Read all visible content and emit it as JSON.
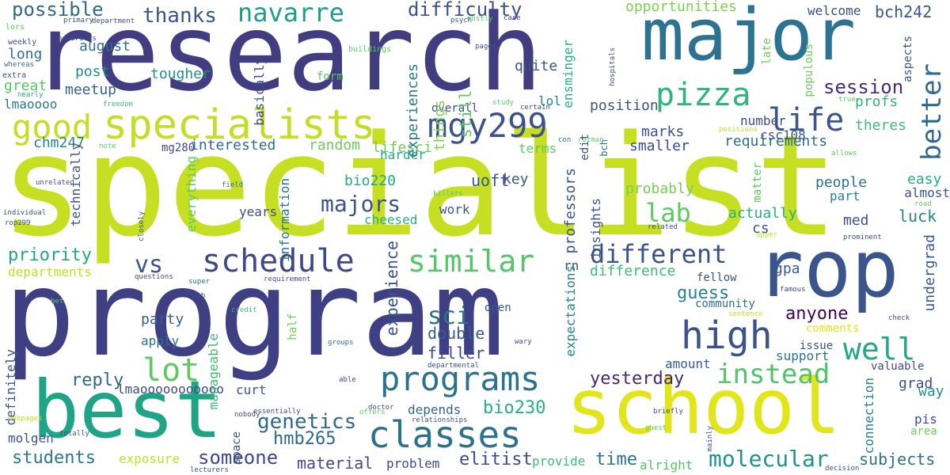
{
  "words": [
    {
      "text": "specialist",
      "color": "#c7df23"
    },
    {
      "text": "program",
      "color": "#3f3f84"
    },
    {
      "text": "research",
      "color": "#423d80"
    },
    {
      "text": "major",
      "color": "#2b7390"
    },
    {
      "text": "rop",
      "color": "#3a548c"
    },
    {
      "text": "best",
      "color": "#20a486"
    },
    {
      "text": "school",
      "color": "#e1e51a"
    },
    {
      "text": "specialists",
      "color": "#c0df25"
    },
    {
      "text": "good",
      "color": "#c1df24"
    },
    {
      "text": "mgy299",
      "color": "#3a538b"
    },
    {
      "text": "classes",
      "color": "#2c718e"
    },
    {
      "text": "programs",
      "color": "#2b728e"
    },
    {
      "text": "high",
      "color": "#3b528b"
    },
    {
      "text": "schedule",
      "color": "#3e4989"
    },
    {
      "text": "similar",
      "color": "#55c667"
    },
    {
      "text": "lot",
      "color": "#5ec962"
    },
    {
      "text": "well",
      "color": "#22a884"
    },
    {
      "text": "instead",
      "color": "#4fc46a"
    },
    {
      "text": "pizza",
      "color": "#2fb47c"
    },
    {
      "text": "life",
      "color": "#3a548c"
    },
    {
      "text": "navarre",
      "color": "#1f9e89"
    },
    {
      "text": "different",
      "color": "#3a538b"
    },
    {
      "text": "vs",
      "color": "#3a548c"
    },
    {
      "text": "lab",
      "color": "#5ec962"
    },
    {
      "text": "sci",
      "color": "#2e6f8e"
    },
    {
      "text": "molecular",
      "color": "#21918c"
    },
    {
      "text": "better",
      "color": "#31688e"
    },
    {
      "text": "majors",
      "color": "#3a548c"
    },
    {
      "text": "difficulty",
      "color": "#3b528b"
    },
    {
      "text": "genetics",
      "color": "#31688e"
    },
    {
      "text": "possible",
      "color": "#31688e"
    },
    {
      "text": "thanks",
      "color": "#39568c"
    },
    {
      "text": "session",
      "color": "#472c7a"
    },
    {
      "text": "yesterday",
      "color": "#482677"
    },
    {
      "text": "someone",
      "color": "#3f4889"
    },
    {
      "text": "experience",
      "color": "#3b528b"
    },
    {
      "text": "guess",
      "color": "#26828e"
    },
    {
      "text": "anyone",
      "color": "#440154"
    },
    {
      "text": "time",
      "color": "#2c728e"
    },
    {
      "text": "bio230",
      "color": "#29af7f"
    },
    {
      "text": "hmb265",
      "color": "#32658e"
    },
    {
      "text": "professors",
      "color": "#3b528b"
    },
    {
      "text": "elitist",
      "color": "#3e4a89"
    },
    {
      "text": "students",
      "color": "#2a788e"
    },
    {
      "text": "opportunities",
      "color": "#7ad151"
    },
    {
      "text": "reply",
      "color": "#31688e"
    },
    {
      "text": "bch242",
      "color": "#38598c"
    },
    {
      "text": "welcome",
      "color": "#3e4c8a"
    },
    {
      "text": "profs",
      "color": "#31b57b"
    },
    {
      "text": "requirements",
      "color": "#2f6c8e"
    },
    {
      "text": "position",
      "color": "#3b528b"
    },
    {
      "text": "interested",
      "color": "#2e6e8e"
    },
    {
      "text": "random",
      "color": "#6ccd5a"
    },
    {
      "text": "marks",
      "color": "#3b528b"
    },
    {
      "text": "smaller",
      "color": "#3e4c8a"
    },
    {
      "text": "gpa",
      "color": "#37598c"
    },
    {
      "text": "undergrad",
      "color": "#375b8d"
    },
    {
      "text": "filler",
      "color": "#3e4a89"
    },
    {
      "text": "double",
      "color": "#375b8d"
    },
    {
      "text": "subjects",
      "color": "#2d718e"
    },
    {
      "text": "material",
      "color": "#3e4a89"
    },
    {
      "text": "luck",
      "color": "#26828e"
    },
    {
      "text": "priority",
      "color": "#21a685"
    },
    {
      "text": "chm247",
      "color": "#25858e"
    },
    {
      "text": "uoft",
      "color": "#3a548c"
    },
    {
      "text": "bio220",
      "color": "#22a884"
    },
    {
      "text": "lifesci",
      "color": "#6ccd5a"
    },
    {
      "text": "cs",
      "color": "#3b528b"
    },
    {
      "text": "med",
      "color": "#3b528b"
    },
    {
      "text": "grad",
      "color": "#3b528b"
    },
    {
      "text": "amount",
      "color": "#355f8d"
    },
    {
      "text": "party",
      "color": "#35608d"
    },
    {
      "text": "difference",
      "color": "#3fbc73"
    },
    {
      "text": "quite",
      "color": "#3a548c"
    },
    {
      "text": "tougher",
      "color": "#218f8d"
    },
    {
      "text": "meetup",
      "color": "#33638d"
    },
    {
      "text": "august",
      "color": "#2f6c8e"
    },
    {
      "text": "post",
      "color": "#228b8d"
    },
    {
      "text": "long",
      "color": "#2e6e8e"
    },
    {
      "text": "great",
      "color": "#55c667"
    },
    {
      "text": "lmaoooo",
      "color": "#2a788e"
    },
    {
      "text": "lmaooooooooooo",
      "color": "#3e4989"
    },
    {
      "text": "actually",
      "color": "#29af7f"
    },
    {
      "text": "probably",
      "color": "#73d056"
    },
    {
      "text": "people",
      "color": "#2e6e8e"
    },
    {
      "text": "easy",
      "color": "#26ad81"
    },
    {
      "text": "almost",
      "color": "#3b528b"
    },
    {
      "text": "part",
      "color": "#26828e"
    },
    {
      "text": "number",
      "color": "#3e4c8a"
    },
    {
      "text": "csc108",
      "color": "#3b528b"
    },
    {
      "text": "theres",
      "color": "#3fbc73"
    },
    {
      "text": "harder",
      "color": "#22a884"
    },
    {
      "text": "terms",
      "color": "#5ec962"
    },
    {
      "text": "key",
      "color": "#39568c"
    },
    {
      "text": "work",
      "color": "#39568c"
    },
    {
      "text": "cheesed",
      "color": "#2ab07f"
    },
    {
      "text": "years",
      "color": "#3e4c8a"
    },
    {
      "text": "apply",
      "color": "#2c728e"
    },
    {
      "text": "departments",
      "color": "#c2df23"
    },
    {
      "text": "depends",
      "color": "#31688e"
    },
    {
      "text": "problem",
      "color": "#3e4c8a"
    },
    {
      "text": "provide",
      "color": "#3fbc73"
    },
    {
      "text": "alright",
      "color": "#54c568"
    },
    {
      "text": "exposure",
      "color": "#c0df25"
    },
    {
      "text": "molgen",
      "color": "#3b528b"
    },
    {
      "text": "curt",
      "color": "#3b528b"
    },
    {
      "text": "comments",
      "color": "#e5e419"
    },
    {
      "text": "issue",
      "color": "#3b528b"
    },
    {
      "text": "support",
      "color": "#2c728e"
    },
    {
      "text": "valuable",
      "color": "#3e4a89"
    },
    {
      "text": "pis",
      "color": "#3b528b"
    },
    {
      "text": "area",
      "color": "#6ccd5a"
    },
    {
      "text": "way",
      "color": "#21918c"
    },
    {
      "text": "fellow",
      "color": "#3b528b"
    },
    {
      "text": "open",
      "color": "#3b528b"
    },
    {
      "text": "community",
      "color": "#2c728e"
    },
    {
      "text": "rn",
      "color": "#3e4c8a"
    },
    {
      "text": "form",
      "color": "#55c667"
    },
    {
      "text": "lol",
      "color": "#26828e"
    },
    {
      "text": "overall",
      "color": "#3e4c8a"
    },
    {
      "text": "definitely",
      "color": "#3b528b"
    },
    {
      "text": "manageable",
      "color": "#3fbc73"
    },
    {
      "text": "half",
      "color": "#6ccd5a"
    },
    {
      "text": "space",
      "color": "#3e4c8a"
    },
    {
      "text": "connection",
      "color": "#26828e"
    },
    {
      "text": "expectations",
      "color": "#26828e"
    },
    {
      "text": "still",
      "color": "#5ec962"
    },
    {
      "text": "things",
      "color": "#7ad151"
    },
    {
      "text": "experiences",
      "color": "#2a788e"
    },
    {
      "text": "basically",
      "color": "#3e4989"
    },
    {
      "text": "technically",
      "color": "#3b528b"
    },
    {
      "text": "everything",
      "color": "#5ec962"
    },
    {
      "text": "information",
      "color": "#2c728e"
    },
    {
      "text": "matter",
      "color": "#5ec962"
    },
    {
      "text": "insights",
      "color": "#3b528b"
    },
    {
      "text": "edit",
      "color": "#3e4c8a"
    },
    {
      "text": "bch",
      "color": "#2c728e"
    },
    {
      "text": "ensminger",
      "color": "#29af7f"
    },
    {
      "text": "populous",
      "color": "#6ccd5a"
    },
    {
      "text": "late",
      "color": "#6ccd5a"
    },
    {
      "text": "aspects",
      "color": "#3b528b"
    },
    {
      "text": "mg280",
      "color": "#3e4989"
    },
    {
      "text": "extra",
      "color": "#3e4c8a"
    },
    {
      "text": "weekly",
      "color": "#3e4c8a"
    },
    {
      "text": "primary",
      "color": "#3e4c8a"
    },
    {
      "text": "department",
      "color": "#3e4c8a"
    },
    {
      "text": "lors",
      "color": "#5ec962"
    },
    {
      "text": "notorious",
      "color": "#3e4c8a"
    },
    {
      "text": "whereas",
      "color": "#2c728e"
    },
    {
      "text": "nearly",
      "color": "#22a884"
    },
    {
      "text": "buildings",
      "color": "#5ec962"
    },
    {
      "text": "psych",
      "color": "#3b528b"
    },
    {
      "text": "mostly",
      "color": "#55c667"
    },
    {
      "text": "case",
      "color": "#3e4c8a"
    },
    {
      "text": "pages",
      "color": "#3e4c8a"
    },
    {
      "text": "hospitals",
      "color": "#3e4c8a"
    },
    {
      "text": "freedom",
      "color": "#3fbc73"
    },
    {
      "text": "study",
      "color": "#5ec962"
    },
    {
      "text": "certain",
      "color": "#3e4c8a"
    },
    {
      "text": "true",
      "color": "#5ec962"
    },
    {
      "text": "positions",
      "color": "#c2df23"
    },
    {
      "text": "note",
      "color": "#5ec962"
    },
    {
      "text": "con",
      "color": "#2c728e"
    },
    {
      "text": "rotman",
      "color": "#5ec962"
    },
    {
      "text": "allows",
      "color": "#5ec962"
    },
    {
      "text": "unrelated",
      "color": "#3e4c8a"
    },
    {
      "text": "closely",
      "color": "#3e4c8a"
    },
    {
      "text": "field",
      "color": "#2c728e"
    },
    {
      "text": "individual",
      "color": "#3e4c8a"
    },
    {
      "text": "rop299",
      "color": "#3e4c8a"
    },
    {
      "text": "killers",
      "color": "#55c667"
    },
    {
      "text": "road",
      "color": "#5ec962"
    },
    {
      "text": "related",
      "color": "#3e4c8a"
    },
    {
      "text": "upper",
      "color": "#c2df23"
    },
    {
      "text": "prominent",
      "color": "#3e4c8a"
    },
    {
      "text": "questions",
      "color": "#3e4c8a"
    },
    {
      "text": "requirement",
      "color": "#3e4c8a"
    },
    {
      "text": "super",
      "color": "#2c728e"
    },
    {
      "text": "eeb",
      "color": "#3e4c8a"
    },
    {
      "text": "famous",
      "color": "#3e4c8a"
    },
    {
      "text": "bet",
      "color": "#5ec962"
    },
    {
      "text": "credit",
      "color": "#3fbc73"
    },
    {
      "text": "sentence",
      "color": "#c2df23"
    },
    {
      "text": "check",
      "color": "#3e4c8a"
    },
    {
      "text": "groups",
      "color": "#2c728e"
    },
    {
      "text": "wary",
      "color": "#3e4c8a"
    },
    {
      "text": "departmental",
      "color": "#3b528b"
    },
    {
      "text": "able",
      "color": "#3e4c8a"
    },
    {
      "text": "doctor",
      "color": "#3e4c8a"
    },
    {
      "text": "offers",
      "color": "#5ec962"
    },
    {
      "text": "relationships",
      "color": "#3b528b"
    },
    {
      "text": "briefly",
      "color": "#3e4c8a"
    },
    {
      "text": "guest",
      "color": "#5ec962"
    },
    {
      "text": "mainly",
      "color": "#3b528b"
    },
    {
      "text": "webpages",
      "color": "#c2df23"
    },
    {
      "text": "nobody",
      "color": "#3e4c8a"
    },
    {
      "text": "essentially",
      "color": "#3e4c8a"
    },
    {
      "text": "totally",
      "color": "#3b528b"
    },
    {
      "text": "lecturers",
      "color": "#3e4c8a"
    },
    {
      "text": "decision",
      "color": "#3e4c8a"
    }
  ]
}
